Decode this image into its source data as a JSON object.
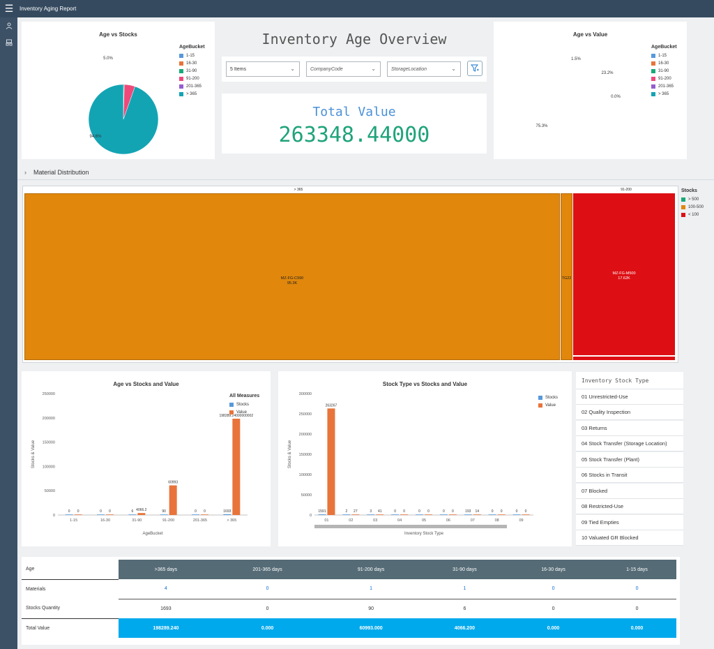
{
  "app": {
    "title": "Inventory Aging Report"
  },
  "colors": {
    "topbar": "#354a5f",
    "teal": "#13a4b4",
    "pink": "#e8467c",
    "orange_bar": "#e8743b",
    "blue_bar": "#5899da",
    "treemap_orange": "#e0870c",
    "treemap_red": "#dd0f14",
    "green_value": "#1fa37a",
    "blue_title": "#4a90d9",
    "highlight": "#00a9ec"
  },
  "age_buckets": {
    "title": "AgeBucket",
    "items": [
      {
        "label": "1-15",
        "color": "#5899da"
      },
      {
        "label": "16-30",
        "color": "#e8743b"
      },
      {
        "label": "31-90",
        "color": "#19a979"
      },
      {
        "label": "91-200",
        "color": "#ed4a7b"
      },
      {
        "label": "201-365",
        "color": "#945ecf"
      },
      {
        "label": "> 365",
        "color": "#13a4b4"
      }
    ]
  },
  "age_vs_stocks": {
    "title": "Age vs Stocks",
    "label_large": "94.6%",
    "label_small": "5.0%",
    "chart_data": {
      "type": "pie",
      "categories": [
        "1-15",
        "16-30",
        "31-90",
        "91-200",
        "201-365",
        "> 365"
      ],
      "values": [
        0,
        0,
        0.4,
        5.0,
        0,
        94.6
      ],
      "colors": [
        "#5899da",
        "#e8743b",
        "#19a979",
        "#ed4a7b",
        "#945ecf",
        "#13a4b4"
      ]
    }
  },
  "age_vs_value": {
    "title": "Age vs Value",
    "label_a": "1.5%",
    "label_b": "23.2%",
    "label_c": "0.0%",
    "label_d": "75.3%",
    "chart_data": {
      "type": "pie",
      "categories": [
        "1-15",
        "16-30",
        "31-90",
        "91-200",
        "201-365",
        "> 365"
      ],
      "values": [
        0,
        0,
        1.5,
        23.2,
        0,
        75.3
      ],
      "colors": [
        "#5899da",
        "#e8743b",
        "#19a979",
        "#ed4a7b",
        "#945ecf",
        "#13a4b4"
      ]
    }
  },
  "overview": {
    "heading": "Inventory Age Overview",
    "filters": {
      "items": "5 Items",
      "company_code": "CompanyCode",
      "storage_location": "StorageLocation"
    },
    "total_label": "Total Value",
    "total_value": "263348.44000"
  },
  "material_distribution": {
    "label": "Material Distribution",
    "legend_title": "Stocks",
    "legend": [
      {
        "label": "> 500",
        "color": "#19a979"
      },
      {
        "label": "100-500",
        "color": "#e0870c"
      },
      {
        "label": "< 100",
        "color": "#dd0f14"
      }
    ],
    "group_a": "> 365",
    "group_b": "91-200",
    "tile_a_name": "MZ-FG-C990",
    "tile_a_value": "95.3K",
    "tile_b_name": "TG22",
    "tile_c_name": "MZ-FG-M500",
    "tile_c_value": "17.62K"
  },
  "age_stocks_value": {
    "title": "Age vs Stocks and Value",
    "legend_title": "All Measures",
    "legend": [
      "Stocks",
      "Value"
    ],
    "ylabel": "Stocks & Value",
    "xlabel": "AgeBucket",
    "yticks": [
      "0",
      "50000",
      "100000",
      "150000",
      "200000",
      "250000"
    ],
    "chart_data": {
      "type": "bar",
      "categories": [
        "1-15",
        "16-30",
        "31-90",
        "91-200",
        "201-365",
        "> 365"
      ],
      "series": [
        {
          "name": "Stocks",
          "values": [
            0,
            0,
            6,
            90,
            0,
            1693
          ],
          "labels": [
            "0",
            "0",
            "6",
            "90",
            "0",
            "1693"
          ]
        },
        {
          "name": "Value",
          "values": [
            0,
            0,
            4066.2,
            60993,
            0,
            198289.24
          ],
          "labels": [
            "0",
            "0",
            "4066.2",
            "60993",
            "0",
            "198289.24000000002"
          ]
        }
      ],
      "ylim": [
        0,
        250000
      ]
    }
  },
  "stock_type_chart": {
    "title": "Stock Type vs Stocks and Value",
    "legend": [
      "Stocks",
      "Value"
    ],
    "ylabel": "Stocks & Value",
    "xlabel": "Inventory Stock Type",
    "yticks": [
      "0",
      "50000",
      "100000",
      "150000",
      "200000",
      "250000",
      "300000"
    ],
    "chart_data": {
      "type": "bar",
      "categories": [
        "01",
        "02",
        "03",
        "04",
        "05",
        "06",
        "07",
        "08",
        "09"
      ],
      "series": [
        {
          "name": "Stocks",
          "values": [
            1591,
            2,
            3,
            0,
            0,
            0,
            193,
            0,
            0
          ],
          "labels": [
            "1591",
            "2",
            "3",
            "0",
            "0",
            "0",
            "193",
            "0",
            "0"
          ]
        },
        {
          "name": "Value",
          "values": [
            263267,
            27,
            41,
            0,
            0,
            0,
            14,
            0,
            0
          ],
          "labels": [
            "263267",
            "27",
            "41",
            "0",
            "0",
            "0",
            "14",
            "0",
            "0"
          ]
        }
      ],
      "ylim": [
        0,
        300000
      ]
    }
  },
  "stock_types": {
    "title": "Inventory Stock Type",
    "items": [
      "01 Unrestricted-Use",
      "02 Quality Inspection",
      "03 Returns",
      "04 Stock Transfer (Storage Location)",
      "05 Stock Transfer (Plant)",
      "06 Stocks in Transit",
      "07 Blocked",
      "08 Restricted-Use",
      "09 Tied Empties",
      "10 Valuated GR Blocked"
    ]
  },
  "summary_table": {
    "header_label": "Age",
    "columns": [
      ">365 days",
      "201-365 days",
      "91-200 days",
      "31-90 days",
      "16-30 days",
      "1-15 days"
    ],
    "rows": [
      {
        "label": "Materials",
        "values": [
          "4",
          "0",
          "1",
          "1",
          "0",
          "0"
        ]
      },
      {
        "label": "Stocks Quantity",
        "values": [
          "1693",
          "0",
          "90",
          "6",
          "0",
          "0"
        ]
      },
      {
        "label": "Total Value",
        "values": [
          "198289.240",
          "0.000",
          "60993.000",
          "4066.200",
          "0.000",
          "0.000"
        ]
      }
    ]
  }
}
